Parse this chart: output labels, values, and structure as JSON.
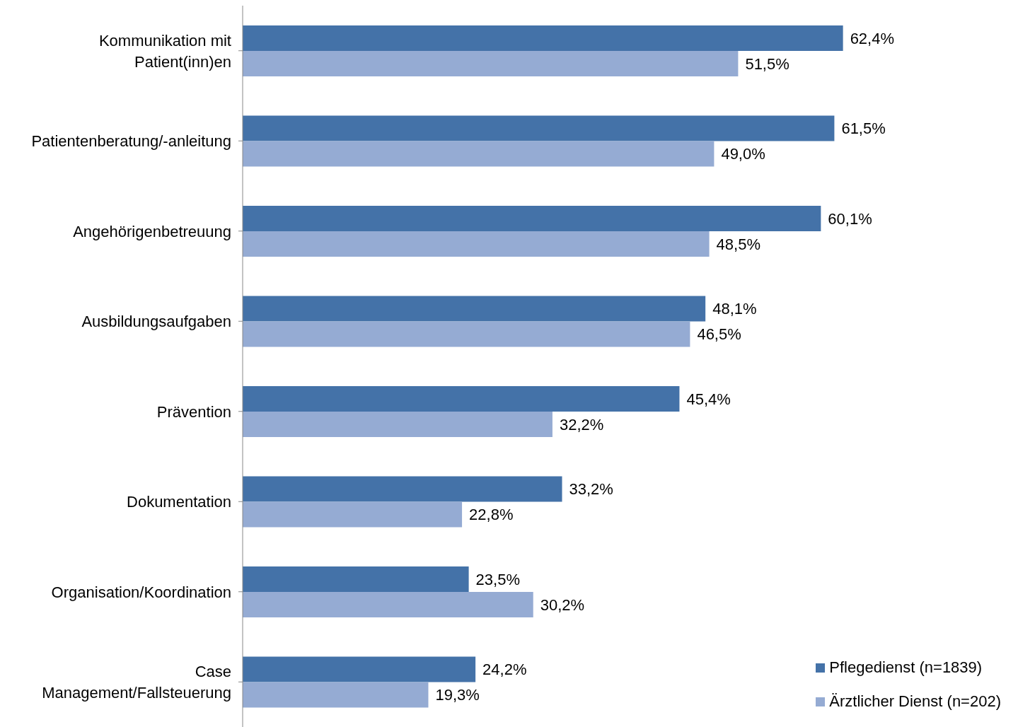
{
  "chart_data": {
    "type": "bar",
    "orientation": "horizontal",
    "categories": [
      "Kommunikation mit Patient(inn)en",
      "Patientenberatung/-anleitung",
      "Angehörigenbetreuung",
      "Ausbildungsaufgaben",
      "Prävention",
      "Dokumentation",
      "Organisation/Koordination",
      "Case Management/Fallsteuerung"
    ],
    "series": [
      {
        "name": "Pflegedienst (n=1839)",
        "color": "#4472a8",
        "values": [
          62.4,
          61.5,
          60.1,
          48.1,
          45.4,
          33.2,
          23.5,
          24.2
        ],
        "value_labels": [
          "62,4%",
          "61,5%",
          "60,1%",
          "48,1%",
          "45,4%",
          "33,2%",
          "23,5%",
          "24,2%"
        ]
      },
      {
        "name": "Ärztlicher Dienst (n=202)",
        "color": "#95abd3",
        "values": [
          51.5,
          49.0,
          48.5,
          46.5,
          32.2,
          22.8,
          30.2,
          19.3
        ],
        "value_labels": [
          "51,5%",
          "49,0%",
          "48,5%",
          "46,5%",
          "32,2%",
          "22,8%",
          "30,2%",
          "19,3%"
        ]
      }
    ],
    "tick_labels": "y",
    "legend": "bottom right"
  }
}
